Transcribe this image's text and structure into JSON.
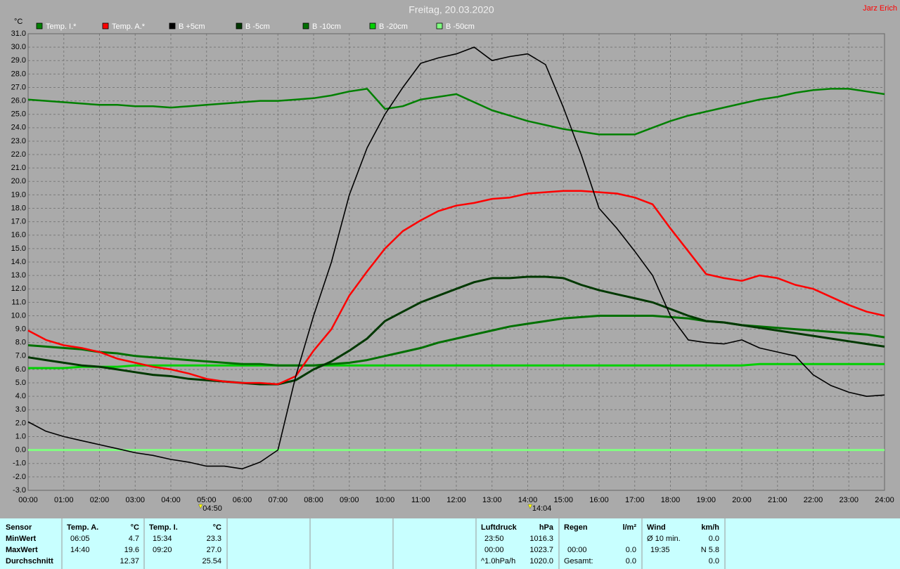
{
  "chart_data": {
    "type": "line",
    "title": "Freitag, 20.03.2020",
    "author": "Jarz Erich",
    "y_label": "°C",
    "xlim": [
      0,
      24
    ],
    "xticks": [
      {
        "value": 0,
        "label": "00:00"
      },
      {
        "value": 1,
        "label": "01:00"
      },
      {
        "value": 2,
        "label": "02:00"
      },
      {
        "value": 3,
        "label": "03:00"
      },
      {
        "value": 4,
        "label": "04:00"
      },
      {
        "value": 5,
        "label": "05:00"
      },
      {
        "value": 6,
        "label": "06:00"
      },
      {
        "value": 7,
        "label": "07:00"
      },
      {
        "value": 8,
        "label": "08:00"
      },
      {
        "value": 9,
        "label": "09:00"
      },
      {
        "value": 10,
        "label": "10:00"
      },
      {
        "value": 11,
        "label": "11:00"
      },
      {
        "value": 12,
        "label": "12:00"
      },
      {
        "value": 13,
        "label": "13:00"
      },
      {
        "value": 14,
        "label": "14:00"
      },
      {
        "value": 15,
        "label": "15:00"
      },
      {
        "value": 16,
        "label": "16:00"
      },
      {
        "value": 17,
        "label": "17:00"
      },
      {
        "value": 18,
        "label": "18:00"
      },
      {
        "value": 19,
        "label": "19:00"
      },
      {
        "value": 20,
        "label": "20:00"
      },
      {
        "value": 21,
        "label": "21:00"
      },
      {
        "value": 22,
        "label": "22:00"
      },
      {
        "value": 23,
        "label": "23:00"
      },
      {
        "value": 24,
        "label": "24:00"
      }
    ],
    "ylim": [
      -3,
      31
    ],
    "yticks": [
      {
        "value": -3,
        "label": "-3.0"
      },
      {
        "value": -2,
        "label": "-2.0"
      },
      {
        "value": -1,
        "label": "-1.0"
      },
      {
        "value": 0,
        "label": "0.0"
      },
      {
        "value": 1,
        "label": "1.0"
      },
      {
        "value": 2,
        "label": "2.0"
      },
      {
        "value": 3,
        "label": "3.0"
      },
      {
        "value": 4,
        "label": "4.0"
      },
      {
        "value": 5,
        "label": "5.0"
      },
      {
        "value": 6,
        "label": "6.0"
      },
      {
        "value": 7,
        "label": "7.0"
      },
      {
        "value": 8,
        "label": "8.0"
      },
      {
        "value": 9,
        "label": "9.0"
      },
      {
        "value": 10,
        "label": "10.0"
      },
      {
        "value": 11,
        "label": "11.0"
      },
      {
        "value": 12,
        "label": "12.0"
      },
      {
        "value": 13,
        "label": "13.0"
      },
      {
        "value": 14,
        "label": "14.0"
      },
      {
        "value": 15,
        "label": "15.0"
      },
      {
        "value": 16,
        "label": "16.0"
      },
      {
        "value": 17,
        "label": "17.0"
      },
      {
        "value": 18,
        "label": "18.0"
      },
      {
        "value": 19,
        "label": "19.0"
      },
      {
        "value": 20,
        "label": "20.0"
      },
      {
        "value": 21,
        "label": "21.0"
      },
      {
        "value": 22,
        "label": "22.0"
      },
      {
        "value": 23,
        "label": "23.0"
      },
      {
        "value": 24,
        "label": "24.0"
      },
      {
        "value": 25,
        "label": "25.0"
      },
      {
        "value": 26,
        "label": "26.0"
      },
      {
        "value": 27,
        "label": "27.0"
      },
      {
        "value": 28,
        "label": "28.0"
      },
      {
        "value": 29,
        "label": "29.0"
      },
      {
        "value": 30,
        "label": "30.0"
      },
      {
        "value": 31,
        "label": "31.0"
      }
    ],
    "grid": true,
    "annotations": [
      "04:50",
      "14:04"
    ],
    "x": [
      0,
      0.5,
      1,
      1.5,
      2,
      2.5,
      3,
      3.5,
      4,
      4.5,
      5,
      5.5,
      6,
      6.5,
      7,
      7.5,
      8,
      8.5,
      9,
      9.5,
      10,
      10.5,
      11,
      11.5,
      12,
      12.5,
      13,
      13.5,
      14,
      14.5,
      15,
      15.5,
      16,
      16.5,
      17,
      17.5,
      18,
      18.5,
      19,
      19.5,
      20,
      20.5,
      21,
      21.5,
      22,
      22.5,
      23,
      23.5,
      24
    ],
    "series": [
      {
        "name": "Temp. I.*",
        "color": "#008000",
        "width": 2.5,
        "values": [
          26.1,
          26.0,
          25.9,
          25.8,
          25.7,
          25.7,
          25.6,
          25.6,
          25.5,
          25.6,
          25.7,
          25.8,
          25.9,
          26.0,
          26.0,
          26.1,
          26.2,
          26.4,
          26.7,
          26.9,
          25.4,
          25.6,
          26.1,
          26.3,
          26.5,
          25.9,
          25.3,
          24.9,
          24.5,
          24.2,
          23.9,
          23.7,
          23.5,
          23.5,
          23.5,
          24.0,
          24.5,
          24.9,
          25.2,
          25.5,
          25.8,
          26.1,
          26.3,
          26.6,
          26.8,
          26.9,
          26.9,
          26.7,
          26.5
        ]
      },
      {
        "name": "Temp. A.*",
        "color": "#ff0000",
        "width": 2.5,
        "values": [
          8.9,
          8.2,
          7.8,
          7.6,
          7.3,
          6.8,
          6.5,
          6.2,
          6.0,
          5.7,
          5.3,
          5.1,
          5.0,
          5.0,
          4.9,
          5.5,
          7.4,
          9.0,
          11.5,
          13.3,
          15.0,
          16.3,
          17.1,
          17.8,
          18.2,
          18.4,
          18.7,
          18.8,
          19.1,
          19.2,
          19.3,
          19.3,
          19.2,
          19.1,
          18.8,
          18.3,
          16.5,
          14.8,
          13.1,
          12.8,
          12.6,
          13.0,
          12.8,
          12.3,
          12.0,
          11.4,
          10.8,
          10.3,
          10.0
        ]
      },
      {
        "name": "B +5cm",
        "color": "#000000",
        "width": 1.6,
        "values": [
          2.1,
          1.4,
          1.0,
          0.7,
          0.4,
          0.1,
          -0.2,
          -0.4,
          -0.7,
          -0.9,
          -1.2,
          -1.2,
          -1.4,
          -0.9,
          0.0,
          5.5,
          10.0,
          14.0,
          19.0,
          22.5,
          25.0,
          27.0,
          28.8,
          29.2,
          29.5,
          30.0,
          29.0,
          29.3,
          29.5,
          28.7,
          25.5,
          22.0,
          18.0,
          16.5,
          14.8,
          13.0,
          10.0,
          8.2,
          8.0,
          7.9,
          8.2,
          7.6,
          7.3,
          7.0,
          5.6,
          4.8,
          4.3,
          4.0,
          4.1
        ]
      },
      {
        "name": "B -5cm",
        "color": "#003800",
        "width": 3,
        "values": [
          6.9,
          6.7,
          6.5,
          6.3,
          6.2,
          6.0,
          5.8,
          5.6,
          5.5,
          5.3,
          5.2,
          5.1,
          5.0,
          4.9,
          4.9,
          5.2,
          6.0,
          6.6,
          7.4,
          8.3,
          9.6,
          10.3,
          11.0,
          11.5,
          12.0,
          12.5,
          12.8,
          12.8,
          12.9,
          12.9,
          12.8,
          12.3,
          11.9,
          11.6,
          11.3,
          11.0,
          10.5,
          10.0,
          9.6,
          9.5,
          9.3,
          9.1,
          8.9,
          8.7,
          8.5,
          8.3,
          8.1,
          7.9,
          7.7
        ]
      },
      {
        "name": "B -10cm",
        "color": "#007000",
        "width": 3,
        "values": [
          7.8,
          7.7,
          7.6,
          7.5,
          7.3,
          7.2,
          7.0,
          6.9,
          6.8,
          6.7,
          6.6,
          6.5,
          6.4,
          6.4,
          6.3,
          6.3,
          6.3,
          6.4,
          6.5,
          6.7,
          7.0,
          7.3,
          7.6,
          8.0,
          8.3,
          8.6,
          8.9,
          9.2,
          9.4,
          9.6,
          9.8,
          9.9,
          10.0,
          10.0,
          10.0,
          10.0,
          9.9,
          9.8,
          9.6,
          9.5,
          9.3,
          9.2,
          9.1,
          9.0,
          8.9,
          8.8,
          8.7,
          8.6,
          8.4
        ]
      },
      {
        "name": "B -20cm",
        "color": "#00d000",
        "width": 3,
        "values": [
          6.1,
          6.1,
          6.1,
          6.2,
          6.2,
          6.2,
          6.3,
          6.3,
          6.3,
          6.3,
          6.3,
          6.3,
          6.3,
          6.3,
          6.3,
          6.3,
          6.3,
          6.3,
          6.3,
          6.3,
          6.3,
          6.3,
          6.3,
          6.3,
          6.3,
          6.3,
          6.3,
          6.3,
          6.3,
          6.3,
          6.3,
          6.3,
          6.3,
          6.3,
          6.3,
          6.3,
          6.3,
          6.3,
          6.3,
          6.3,
          6.3,
          6.4,
          6.4,
          6.4,
          6.4,
          6.4,
          6.4,
          6.4,
          6.4
        ]
      },
      {
        "name": "B -50cm",
        "color": "#80ff80",
        "width": 3,
        "values": [
          0,
          0,
          0,
          0,
          0,
          0,
          0,
          0,
          0,
          0,
          0,
          0,
          0,
          0,
          0,
          0,
          0,
          0,
          0,
          0,
          0,
          0,
          0,
          0,
          0,
          0,
          0,
          0,
          0,
          0,
          0,
          0,
          0,
          0,
          0,
          0,
          0,
          0,
          0,
          0,
          0,
          0,
          0,
          0,
          0,
          0,
          0,
          0,
          0
        ]
      }
    ]
  },
  "stats": {
    "row_labels": [
      "Sensor",
      "MinWert",
      "MaxWert",
      "Durchschnitt"
    ],
    "blocks": [
      {
        "name": "Temp. A.",
        "unit": "°C",
        "rows": [
          {
            "time": "06:05",
            "value": "4.7"
          },
          {
            "time": "14:40",
            "value": "19.6"
          },
          {
            "value": "12.37"
          }
        ]
      },
      {
        "name": "Temp. I.",
        "unit": "°C",
        "rows": [
          {
            "time": "15:34",
            "value": "23.3"
          },
          {
            "time": "09:20",
            "value": "27.0"
          },
          {
            "value": "25.54"
          }
        ]
      },
      {
        "name": "Luftdruck",
        "unit": "hPa",
        "rows": [
          {
            "time": "23:50",
            "value": "1016.3"
          },
          {
            "time": "00:00",
            "value": "1023.7"
          },
          {
            "time": "^1.0hPa/h",
            "value": "1020.0"
          }
        ]
      },
      {
        "name": "Regen",
        "unit": "l/m²",
        "rows": [
          {},
          {
            "time": "00:00",
            "value": "0.0"
          },
          {
            "time": "Gesamt:",
            "value": "0.0"
          }
        ]
      },
      {
        "name": "Wind",
        "unit": "km/h",
        "rows": [
          {
            "time": "Ø 10 min.",
            "value": "0.0"
          },
          {
            "time": "19:35",
            "value": "N 5.8"
          },
          {
            "value": "0.0"
          }
        ]
      }
    ]
  }
}
